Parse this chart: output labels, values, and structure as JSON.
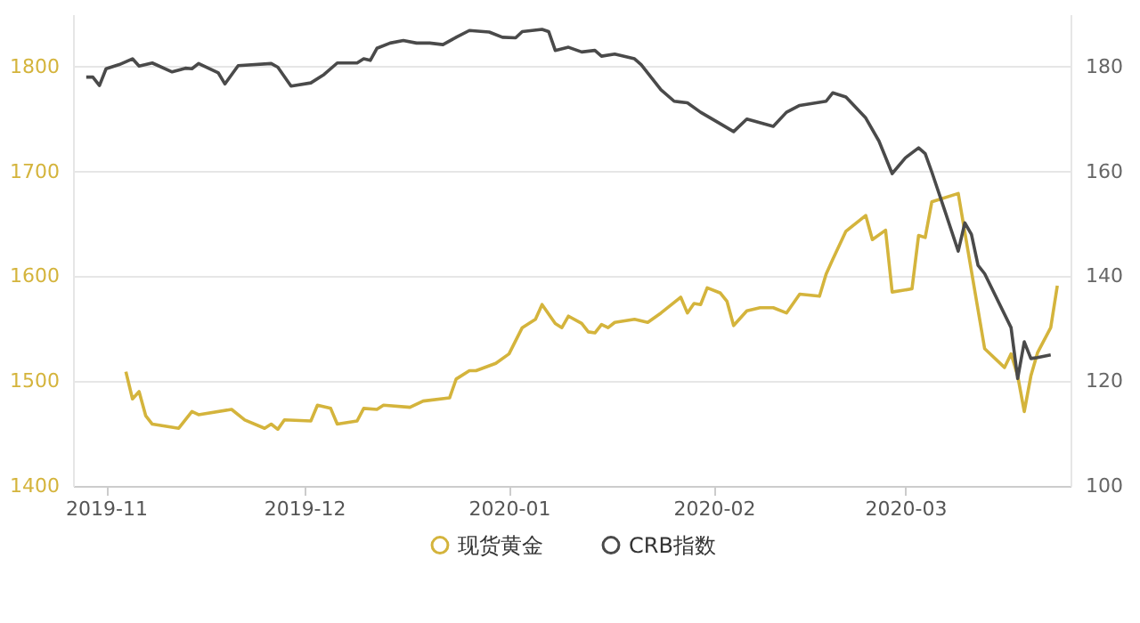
{
  "chart_data": {
    "type": "line",
    "legend": "bottom",
    "grid": "y",
    "marker": "none",
    "line_style": "solid",
    "xlim": [
      "2019-10-27",
      "2020-03-26"
    ],
    "xticks": [
      {
        "value": "2019-11-01",
        "label": "2019-11"
      },
      {
        "value": "2019-12-01",
        "label": "2019-12"
      },
      {
        "value": "2020-01-01",
        "label": "2020-01"
      },
      {
        "value": "2020-02-01",
        "label": "2020-02"
      },
      {
        "value": "2020-03-01",
        "label": "2020-03"
      }
    ],
    "ylim": [
      1400,
      1850
    ],
    "yticks": [
      1400,
      1500,
      1600,
      1700,
      1800
    ],
    "y2lim": [
      100,
      190
    ],
    "y2ticks": [
      100,
      120,
      140,
      160,
      180
    ],
    "series": [
      {
        "name": "现货黄金",
        "color": "#d4b43c",
        "x": [
          "2019-11-04",
          "2019-11-05",
          "2019-11-06",
          "2019-11-07",
          "2019-11-08",
          "2019-11-12",
          "2019-11-14",
          "2019-11-15",
          "2019-11-20",
          "2019-11-22",
          "2019-11-25",
          "2019-11-26",
          "2019-11-27",
          "2019-11-28",
          "2019-12-02",
          "2019-12-03",
          "2019-12-05",
          "2019-12-06",
          "2019-12-09",
          "2019-12-10",
          "2019-12-12",
          "2019-12-13",
          "2019-12-17",
          "2019-12-19",
          "2019-12-23",
          "2019-12-24",
          "2019-12-26",
          "2019-12-27",
          "2019-12-30",
          "2020-01-01",
          "2020-01-03",
          "2020-01-05",
          "2020-01-06",
          "2020-01-08",
          "2020-01-09",
          "2020-01-10",
          "2020-01-12",
          "2020-01-13",
          "2020-01-14",
          "2020-01-15",
          "2020-01-16",
          "2020-01-17",
          "2020-01-20",
          "2020-01-22",
          "2020-01-24",
          "2020-01-27",
          "2020-01-28",
          "2020-01-29",
          "2020-01-30",
          "2020-01-31",
          "2020-02-02",
          "2020-02-03",
          "2020-02-04",
          "2020-02-06",
          "2020-02-08",
          "2020-02-10",
          "2020-02-12",
          "2020-02-14",
          "2020-02-17",
          "2020-02-18",
          "2020-02-19",
          "2020-02-21",
          "2020-02-24",
          "2020-02-25",
          "2020-02-27",
          "2020-02-28",
          "2020-03-02",
          "2020-03-03",
          "2020-03-04",
          "2020-03-05",
          "2020-03-09",
          "2020-03-13",
          "2020-03-16",
          "2020-03-17",
          "2020-03-18",
          "2020-03-19",
          "2020-03-20",
          "2020-03-21",
          "2020-03-23",
          "2020-03-24"
        ],
        "values": [
          1509,
          1483,
          1490,
          1467,
          1459,
          1455,
          1471,
          1468,
          1473,
          1463,
          1455,
          1459,
          1454,
          1463,
          1462,
          1477,
          1474,
          1459,
          1462,
          1474,
          1473,
          1477,
          1475,
          1481,
          1484,
          1502,
          1510,
          1510,
          1517,
          1526,
          1551,
          1559,
          1573,
          1555,
          1551,
          1562,
          1555,
          1547,
          1546,
          1554,
          1551,
          1556,
          1559,
          1556,
          1565,
          1580,
          1565,
          1574,
          1573,
          1589,
          1584,
          1576,
          1553,
          1567,
          1570,
          1570,
          1565,
          1583,
          1581,
          1602,
          1616,
          1643,
          1658,
          1635,
          1644,
          1585,
          1588,
          1639,
          1637,
          1671,
          1679,
          1531,
          1513,
          1526,
          1505,
          1471,
          1505,
          1527,
          1551,
          1591
        ]
      },
      {
        "name": "CRB指数",
        "color": "#4a4a4a",
        "axis": "y2",
        "x": [
          "2019-10-29",
          "2019-10-30",
          "2019-10-31",
          "2019-11-01",
          "2019-11-03",
          "2019-11-05",
          "2019-11-06",
          "2019-11-08",
          "2019-11-11",
          "2019-11-13",
          "2019-11-14",
          "2019-11-15",
          "2019-11-18",
          "2019-11-19",
          "2019-11-21",
          "2019-11-26",
          "2019-11-27",
          "2019-11-29",
          "2019-12-02",
          "2019-12-04",
          "2019-12-06",
          "2019-12-09",
          "2019-12-10",
          "2019-12-11",
          "2019-12-12",
          "2019-12-14",
          "2019-12-16",
          "2019-12-18",
          "2019-12-20",
          "2019-12-22",
          "2019-12-24",
          "2019-12-26",
          "2019-12-29",
          "2019-12-31",
          "2020-01-02",
          "2020-01-03",
          "2020-01-06",
          "2020-01-07",
          "2020-01-08",
          "2020-01-10",
          "2020-01-12",
          "2020-01-14",
          "2020-01-15",
          "2020-01-17",
          "2020-01-20",
          "2020-01-21",
          "2020-01-24",
          "2020-01-26",
          "2020-01-28",
          "2020-01-30",
          "2020-02-02",
          "2020-02-04",
          "2020-02-06",
          "2020-02-10",
          "2020-02-12",
          "2020-02-14",
          "2020-02-18",
          "2020-02-19",
          "2020-02-21",
          "2020-02-24",
          "2020-02-26",
          "2020-02-28",
          "2020-03-01",
          "2020-03-03",
          "2020-03-04",
          "2020-03-05",
          "2020-03-07",
          "2020-03-09",
          "2020-03-10",
          "2020-03-11",
          "2020-03-12",
          "2020-03-13",
          "2020-03-17",
          "2020-03-18",
          "2020-03-19",
          "2020-03-20",
          "2020-03-21",
          "2020-03-23"
        ],
        "values": [
          178.0,
          178.0,
          176.4,
          179.6,
          180.4,
          181.5,
          180.1,
          180.7,
          179.0,
          179.7,
          179.6,
          180.6,
          178.8,
          176.7,
          180.2,
          180.6,
          179.9,
          176.3,
          176.9,
          178.5,
          180.7,
          180.7,
          181.5,
          181.2,
          183.5,
          184.5,
          185.0,
          184.5,
          184.5,
          184.2,
          185.6,
          186.9,
          186.6,
          185.6,
          185.5,
          186.7,
          187.1,
          186.7,
          183.1,
          183.7,
          182.8,
          183.1,
          182.0,
          182.4,
          181.5,
          180.4,
          175.6,
          173.4,
          173.1,
          171.3,
          169.1,
          167.6,
          170.0,
          168.6,
          171.3,
          172.6,
          173.4,
          175.0,
          174.2,
          170.2,
          165.8,
          159.6,
          162.6,
          164.5,
          163.4,
          159.9,
          152.4,
          144.8,
          150.2,
          148.0,
          142.1,
          140.5,
          130.2,
          120.5,
          127.5,
          124.3,
          124.5,
          125.0
        ]
      }
    ]
  }
}
